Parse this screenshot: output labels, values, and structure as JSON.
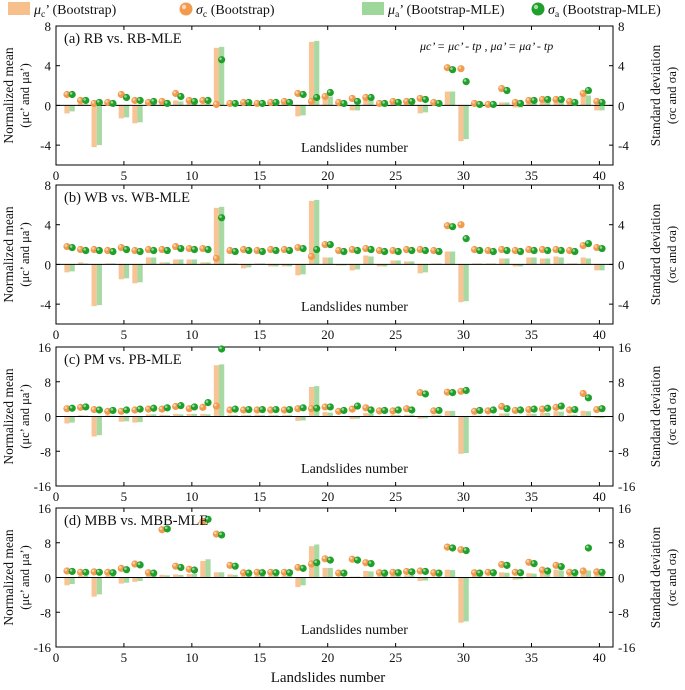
{
  "legend": [
    {
      "symbol": "μ",
      "sub": "c",
      "suffix": "’ (Bootstrap)",
      "kind": "bar",
      "color": "#f6bf8c"
    },
    {
      "symbol": "σ",
      "sub": "c",
      "suffix": " (Bootstrap)",
      "kind": "dot",
      "color": "#f29b4f"
    },
    {
      "symbol": "μ",
      "sub": "a",
      "suffix": "’ (Bootstrap-MLE)",
      "kind": "bar",
      "color": "#9ed79a"
    },
    {
      "symbol": "σ",
      "sub": "a",
      "suffix": " (Bootstrap-MLE)",
      "kind": "dot",
      "color": "#1fa02a"
    }
  ],
  "colors": {
    "bar_c": "#f6bf8c",
    "bar_a": "#9ed79a",
    "dot_c": "#f29b4f",
    "dot_a": "#1fa02a"
  },
  "left_axis_title": [
    "Normalized mean",
    "(μc’ and μa’)"
  ],
  "right_axis_title": [
    "Standard deviation",
    "(σc and σa)"
  ],
  "inner_xlabel": "Landslides number",
  "bottom_xlabel": "Landslides number",
  "x_ticks": [
    "0",
    "5",
    "10",
    "15",
    "20",
    "25",
    "30",
    "35",
    "40"
  ],
  "chart_data": [
    {
      "type": "bar",
      "title": "(a) RB vs. RB-MLE",
      "note": "μc’ = μc’ - tp ,  μa’ = μa’ - tp",
      "ylim": [
        -6,
        8
      ],
      "yticks": [
        "8",
        "4",
        "0",
        "-4"
      ],
      "x": [
        1,
        2,
        3,
        4,
        5,
        6,
        7,
        8,
        9,
        10,
        11,
        12,
        13,
        14,
        15,
        16,
        17,
        18,
        19,
        20,
        21,
        22,
        23,
        24,
        25,
        26,
        27,
        28,
        29,
        30,
        31,
        32,
        33,
        34,
        35,
        36,
        37,
        38,
        39,
        40
      ],
      "mu_c": [
        -0.8,
        0.2,
        -4.2,
        0.1,
        -1.3,
        -1.8,
        0.2,
        0.2,
        0.5,
        0.3,
        0.1,
        5.8,
        0.1,
        0.3,
        0.4,
        0.3,
        0.1,
        -1.1,
        6.4,
        1.0,
        -0.1,
        -0.5,
        0.7,
        -0.1,
        0.2,
        0.3,
        -0.8,
        0.1,
        1.4,
        -3.6,
        0.1,
        0.1,
        0.3,
        -0.2,
        0.6,
        0.5,
        0.7,
        0.1,
        1.1,
        -0.5
      ],
      "mu_a": [
        -0.6,
        0.1,
        -4.0,
        0.1,
        -1.2,
        -1.7,
        0.2,
        0.1,
        0.4,
        0.3,
        0.2,
        5.9,
        0.1,
        0.3,
        0.3,
        0.3,
        0.1,
        -1.0,
        6.5,
        0.9,
        -0.1,
        -0.5,
        0.6,
        -0.1,
        0.2,
        0.3,
        -0.7,
        0.1,
        1.4,
        -3.4,
        0.1,
        0.1,
        0.3,
        -0.2,
        0.5,
        0.5,
        0.6,
        0.1,
        1.0,
        -0.5
      ],
      "sd_c": [
        1.1,
        0.5,
        0.2,
        0.3,
        1.1,
        0.5,
        0.3,
        0.4,
        1.2,
        0.5,
        0.5,
        0.1,
        0.2,
        0.3,
        0.2,
        0.3,
        0.4,
        1.2,
        0.4,
        0.9,
        0.3,
        0.7,
        0.8,
        0.2,
        0.4,
        0.4,
        0.7,
        0.3,
        3.8,
        3.7,
        0.2,
        0.1,
        1.7,
        0.3,
        0.5,
        0.6,
        0.6,
        0.4,
        1.2,
        0.4
      ],
      "sd_a": [
        1.1,
        0.5,
        0.3,
        0.2,
        0.8,
        0.5,
        0.4,
        0.2,
        0.9,
        0.4,
        0.5,
        4.6,
        0.2,
        0.3,
        0.2,
        0.3,
        0.3,
        1.1,
        0.8,
        1.3,
        0.2,
        0.4,
        0.8,
        0.2,
        0.3,
        0.4,
        0.6,
        0.2,
        3.6,
        2.4,
        0.1,
        0.1,
        1.5,
        0.2,
        0.5,
        0.6,
        0.6,
        0.3,
        1.5,
        0.3
      ]
    },
    {
      "type": "bar",
      "title": "(b) WB vs. WB-MLE",
      "ylim": [
        -6,
        8
      ],
      "yticks": [
        "8",
        "4",
        "0",
        "-4"
      ],
      "x": [
        1,
        2,
        3,
        4,
        5,
        6,
        7,
        8,
        9,
        10,
        11,
        12,
        13,
        14,
        15,
        16,
        17,
        18,
        19,
        20,
        21,
        22,
        23,
        24,
        25,
        26,
        27,
        28,
        29,
        30,
        31,
        32,
        33,
        34,
        35,
        36,
        37,
        38,
        39,
        40
      ],
      "mu_c": [
        -0.8,
        0.2,
        -4.2,
        0.1,
        -1.5,
        -1.9,
        0.7,
        0.2,
        0.5,
        0.5,
        0.2,
        5.7,
        0.1,
        -0.4,
        0.1,
        -0.2,
        -0.2,
        -1.1,
        6.4,
        0.7,
        -0.1,
        -0.6,
        0.9,
        -0.2,
        0.4,
        0.3,
        -0.9,
        0.1,
        1.3,
        -3.8,
        0.1,
        0.1,
        0.6,
        -0.2,
        0.7,
        0.6,
        0.8,
        0.1,
        0.7,
        -0.6
      ],
      "mu_a": [
        -0.7,
        0.1,
        -4.1,
        0.1,
        -1.4,
        -1.8,
        0.7,
        0.2,
        0.5,
        0.5,
        0.2,
        5.8,
        0.1,
        -0.3,
        0.1,
        -0.2,
        -0.2,
        -1.0,
        6.5,
        0.7,
        -0.1,
        -0.5,
        0.8,
        -0.2,
        0.4,
        0.3,
        -0.8,
        0.1,
        1.3,
        -3.7,
        0.1,
        0.1,
        0.6,
        -0.2,
        0.7,
        0.6,
        0.7,
        0.1,
        0.6,
        -0.6
      ],
      "sd_c": [
        1.8,
        1.5,
        1.5,
        1.4,
        1.7,
        1.4,
        1.5,
        1.5,
        1.8,
        1.6,
        1.6,
        0.6,
        1.4,
        1.5,
        1.4,
        1.5,
        1.5,
        1.7,
        0.8,
        2.0,
        1.4,
        1.5,
        1.6,
        1.4,
        1.4,
        1.5,
        1.5,
        1.4,
        3.9,
        4.0,
        1.5,
        1.4,
        1.5,
        1.4,
        1.5,
        1.5,
        1.5,
        1.4,
        1.9,
        1.7
      ],
      "sd_a": [
        1.7,
        1.4,
        1.4,
        1.3,
        1.5,
        1.3,
        1.4,
        1.4,
        1.6,
        1.5,
        1.5,
        4.7,
        1.3,
        1.4,
        1.3,
        1.4,
        1.4,
        1.6,
        1.5,
        2.0,
        1.3,
        1.4,
        1.5,
        1.3,
        1.3,
        1.4,
        1.4,
        1.3,
        3.8,
        2.6,
        1.4,
        1.3,
        1.4,
        1.3,
        1.4,
        1.4,
        1.4,
        1.3,
        2.1,
        1.6
      ]
    },
    {
      "type": "bar",
      "title": "(c) PM vs. PB-MLE",
      "ylim": [
        -16,
        16
      ],
      "yticks": [
        "16",
        "8",
        "0",
        "-8",
        "-16"
      ],
      "x": [
        1,
        2,
        3,
        4,
        5,
        6,
        7,
        8,
        9,
        10,
        11,
        12,
        13,
        14,
        15,
        16,
        17,
        18,
        19,
        20,
        21,
        22,
        23,
        24,
        25,
        26,
        27,
        28,
        29,
        30,
        31,
        32,
        33,
        34,
        35,
        36,
        37,
        38,
        39,
        40
      ],
      "mu_c": [
        -1.6,
        0.3,
        -4.6,
        0.3,
        -1.2,
        -1.4,
        0.5,
        0.4,
        0.6,
        0.6,
        0.6,
        11.8,
        0.4,
        0.3,
        0.4,
        0.3,
        0.3,
        -1.0,
        6.8,
        1.0,
        0.1,
        -0.6,
        0.8,
        0.1,
        0.4,
        0.4,
        -0.5,
        0.3,
        1.3,
        -8.6,
        0.2,
        0.2,
        0.7,
        0.1,
        0.7,
        0.8,
        1.2,
        0.4,
        1.3,
        -0.3
      ],
      "mu_a": [
        -1.4,
        0.2,
        -4.3,
        0.2,
        -1.1,
        -1.3,
        0.5,
        0.3,
        0.5,
        0.6,
        0.5,
        12.0,
        0.3,
        0.3,
        0.3,
        0.3,
        0.3,
        -0.9,
        7.0,
        0.9,
        0.1,
        -0.5,
        0.7,
        0.1,
        0.3,
        0.4,
        -0.4,
        0.3,
        1.3,
        -8.4,
        0.2,
        0.2,
        0.7,
        0.1,
        0.6,
        0.8,
        1.1,
        0.4,
        1.2,
        -0.3
      ],
      "sd_c": [
        1.8,
        2.1,
        1.6,
        1.2,
        1.2,
        1.5,
        1.7,
        1.7,
        2.3,
        1.8,
        2.1,
        2.4,
        1.5,
        1.5,
        1.5,
        1.5,
        1.5,
        1.8,
        1.8,
        2.2,
        1.2,
        1.7,
        2.0,
        1.3,
        1.3,
        1.8,
        5.5,
        1.3,
        5.6,
        5.8,
        1.2,
        1.3,
        2.3,
        1.4,
        1.6,
        1.7,
        2.1,
        1.5,
        5.3,
        1.6
      ],
      "sd_a": [
        1.9,
        2.2,
        1.5,
        1.4,
        1.5,
        1.7,
        1.9,
        2.0,
        2.5,
        2.2,
        3.2,
        16.0,
        1.7,
        1.6,
        1.6,
        1.6,
        1.6,
        2.0,
        1.9,
        2.2,
        1.4,
        2.4,
        1.5,
        1.4,
        1.5,
        1.5,
        5.2,
        1.4,
        5.5,
        6.0,
        1.4,
        1.5,
        1.8,
        1.5,
        1.7,
        1.9,
        2.4,
        1.6,
        4.3,
        1.8
      ]
    },
    {
      "type": "bar",
      "title": "(d) MBB vs. MBB-MLE",
      "ylim": [
        -16,
        16
      ],
      "yticks": [
        "16",
        "8",
        "0",
        "-8",
        "-16"
      ],
      "x": [
        1,
        2,
        3,
        4,
        5,
        6,
        7,
        8,
        9,
        10,
        11,
        12,
        13,
        14,
        15,
        16,
        17,
        18,
        19,
        20,
        21,
        22,
        23,
        24,
        25,
        26,
        27,
        28,
        29,
        30,
        31,
        32,
        33,
        34,
        35,
        36,
        37,
        38,
        39,
        40
      ],
      "mu_c": [
        -1.8,
        0.4,
        -4.4,
        0.4,
        -1.4,
        -1.0,
        0.5,
        0.6,
        0.7,
        0.8,
        3.8,
        1.2,
        0.7,
        0.3,
        0.4,
        0.4,
        0.4,
        -2.2,
        7.2,
        2.2,
        0.1,
        0.2,
        1.5,
        0.3,
        0.6,
        0.5,
        -0.8,
        0.2,
        1.8,
        -10.4,
        0.4,
        0.2,
        1.2,
        -0.5,
        1.0,
        1.2,
        1.8,
        0.4,
        1.7,
        0.9
      ],
      "mu_a": [
        -1.5,
        0.3,
        -3.9,
        0.3,
        -1.2,
        -0.8,
        0.4,
        0.5,
        0.6,
        0.8,
        4.2,
        1.2,
        0.6,
        0.3,
        0.4,
        0.4,
        0.4,
        -1.8,
        7.6,
        2.2,
        0.1,
        0.2,
        1.4,
        0.3,
        0.5,
        0.5,
        -0.7,
        0.2,
        1.7,
        -10.1,
        0.4,
        0.2,
        1.1,
        -0.4,
        0.9,
        1.2,
        1.6,
        0.4,
        1.6,
        0.9
      ],
      "sd_c": [
        1.5,
        1.2,
        1.3,
        1.2,
        2.1,
        3.1,
        1.1,
        11.0,
        2.6,
        1.9,
        12.9,
        10.0,
        2.8,
        1.1,
        1.2,
        1.2,
        1.2,
        2.3,
        3.1,
        4.3,
        1.0,
        4.2,
        3.4,
        1.1,
        1.2,
        1.4,
        1.5,
        1.1,
        7.0,
        6.4,
        1.1,
        1.2,
        3.0,
        1.2,
        3.5,
        1.7,
        2.8,
        1.2,
        1.5,
        1.3
      ],
      "sd_a": [
        1.4,
        1.2,
        1.2,
        1.1,
        1.8,
        2.9,
        1.0,
        11.2,
        2.3,
        1.7,
        13.4,
        9.8,
        2.6,
        1.0,
        1.1,
        1.1,
        1.1,
        2.1,
        3.4,
        4.0,
        1.0,
        4.0,
        3.2,
        1.0,
        1.1,
        1.3,
        1.4,
        1.0,
        6.8,
        6.2,
        1.0,
        1.1,
        2.8,
        1.1,
        3.2,
        1.5,
        2.5,
        1.1,
        6.8,
        1.2
      ]
    }
  ]
}
